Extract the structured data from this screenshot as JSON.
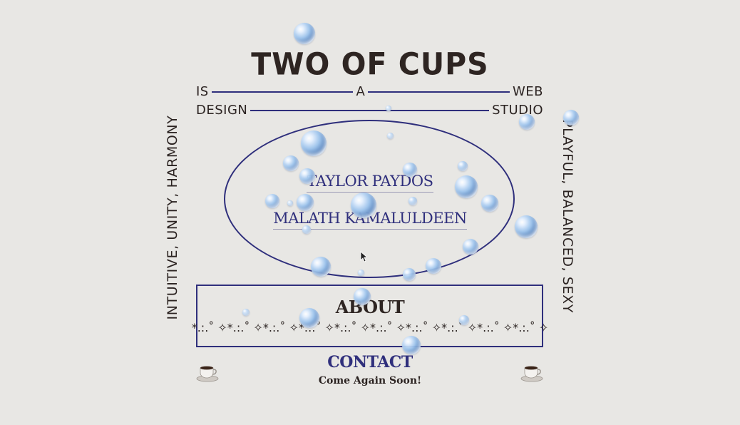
{
  "header": {
    "title": "TWO OF CUPS",
    "tagline_row1": [
      "IS",
      "A",
      "WEB"
    ],
    "tagline_row2": [
      "DESIGN",
      "STUDIO"
    ]
  },
  "side_text": {
    "left": "INTUITIVE, UNITY, HARMONY",
    "right": "PLAYFUL, BALANCED, SEXY"
  },
  "people": [
    {
      "name": "TAYLOR PAYDOS"
    },
    {
      "name": "MALATH KAMALULDEEN"
    }
  ],
  "about": {
    "label": "ABOUT",
    "decoration": "*.:.˚ ✧*.:.˚ ✧*.:.˚ ✧*.:.˚ ✧*.:.˚ ✧*.:.˚ ✧*.:.˚ ✧*.:.˚ ✧*.:.˚ ✧*.:.˚ ✧"
  },
  "contact": {
    "label": "CONTACT",
    "farewell": "Come Again Soon!"
  },
  "icons": {
    "left_cup": "coffee-cup-icon",
    "right_cup": "coffee-cup-icon",
    "bubbles": "bubble-icon"
  },
  "colors": {
    "background": "#e8e7e4",
    "accent": "#2f2f7c",
    "text": "#2b2321"
  }
}
